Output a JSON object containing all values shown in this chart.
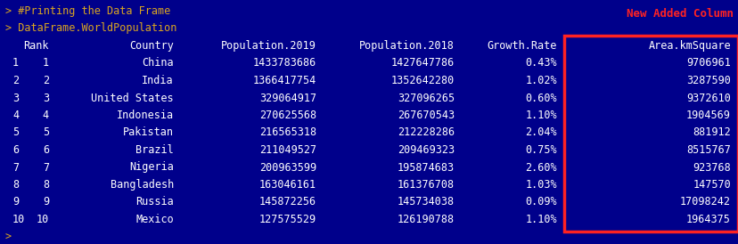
{
  "bg_color": "#00008B",
  "text_color": "#FFFFFF",
  "prompt_color": "#DAA520",
  "annotation_color": "#FF2222",
  "line1": "> #Printing the Data Frame",
  "line2": "> DataFrame.WorldPopulation",
  "new_added_label": "New Added Column",
  "header": [
    "Rank",
    "Country",
    "Population.2019",
    "Population.2018",
    "Growth.Rate",
    "Area.kmSquare"
  ],
  "row_indices": [
    "1",
    "2",
    "3",
    "4",
    "5",
    "6",
    "7",
    "8",
    "9",
    "10"
  ],
  "data": [
    [
      "1",
      "China",
      "1433783686",
      "1427647786",
      "0.43%",
      "9706961"
    ],
    [
      "2",
      "India",
      "1366417754",
      "1352642280",
      "1.02%",
      "3287590"
    ],
    [
      "3",
      "United States",
      "329064917",
      "327096265",
      "0.60%",
      "9372610"
    ],
    [
      "4",
      "Indonesia",
      "270625568",
      "267670543",
      "1.10%",
      "1904569"
    ],
    [
      "5",
      "Pakistan",
      "216565318",
      "212228286",
      "2.04%",
      "881912"
    ],
    [
      "6",
      "Brazil",
      "211049527",
      "209469323",
      "0.75%",
      "8515767"
    ],
    [
      "7",
      "Nigeria",
      "200963599",
      "195874683",
      "2.60%",
      "923768"
    ],
    [
      "8",
      "Bangladesh",
      "163046161",
      "161376708",
      "1.03%",
      "147570"
    ],
    [
      "9",
      "Russia",
      "145872256",
      "145734038",
      "0.09%",
      "17098242"
    ],
    [
      "10",
      "Mexico",
      "127575529",
      "126190788",
      "1.10%",
      "1964375"
    ]
  ],
  "font_size": 8.5,
  "mono_font": "monospace",
  "figw": 8.29,
  "figh": 2.74,
  "dpi": 100
}
